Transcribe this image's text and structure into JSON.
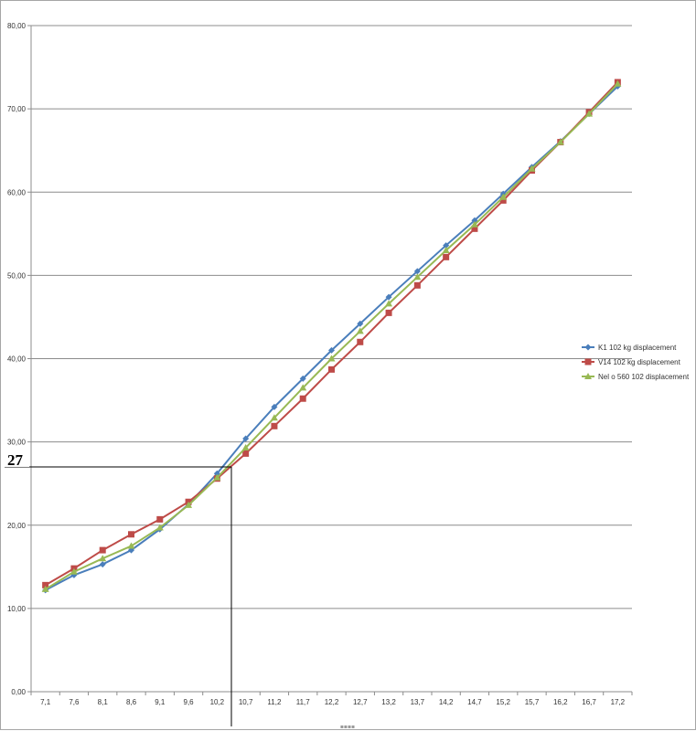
{
  "chart_data": {
    "type": "line",
    "title": "",
    "xlabel": "",
    "ylabel": "",
    "categories": [
      "7,1",
      "7,6",
      "8,1",
      "8,6",
      "9,1",
      "9,6",
      "10,2",
      "10,7",
      "11,2",
      "11,7",
      "12,2",
      "12,7",
      "13,2",
      "13,7",
      "14,2",
      "14,7",
      "15,2",
      "15,7",
      "16,2",
      "16,7",
      "17,2"
    ],
    "y_ticks": [
      "0,00",
      "10,00",
      "20,00",
      "30,00",
      "40,00",
      "50,00",
      "60,00",
      "70,00",
      "80,00"
    ],
    "ylim": [
      0,
      80
    ],
    "grid": "horizontal",
    "legend_position": "right",
    "series": [
      {
        "name": "K1 102 kg displacement",
        "color": "#4a7ebb",
        "marker": "diamond",
        "values": [
          12.2,
          14.0,
          15.3,
          17.0,
          19.5,
          22.5,
          26.2,
          30.4,
          34.2,
          37.6,
          41.0,
          44.2,
          47.4,
          50.5,
          53.6,
          56.6,
          59.8,
          63.0,
          66.1,
          69.4,
          72.7
        ]
      },
      {
        "name": "V14 102 kg displacement",
        "color": "#be4b48",
        "marker": "square",
        "values": [
          12.8,
          14.8,
          17.0,
          18.9,
          20.7,
          22.8,
          25.6,
          28.6,
          31.9,
          35.2,
          38.7,
          42.0,
          45.5,
          48.8,
          52.2,
          55.6,
          59.0,
          62.6,
          66.0,
          69.6,
          73.2
        ]
      },
      {
        "name": "Nel o 560 102 displacement",
        "color": "#98b954",
        "marker": "triangle",
        "values": [
          12.3,
          14.4,
          16.0,
          17.5,
          19.7,
          22.4,
          25.7,
          29.3,
          32.9,
          36.5,
          40.0,
          43.3,
          46.6,
          49.8,
          53.0,
          56.1,
          59.4,
          62.8,
          66.0,
          69.4,
          73.0
        ]
      }
    ],
    "annotation": {
      "label": "27",
      "y_value": 27,
      "category": "10,2"
    }
  }
}
